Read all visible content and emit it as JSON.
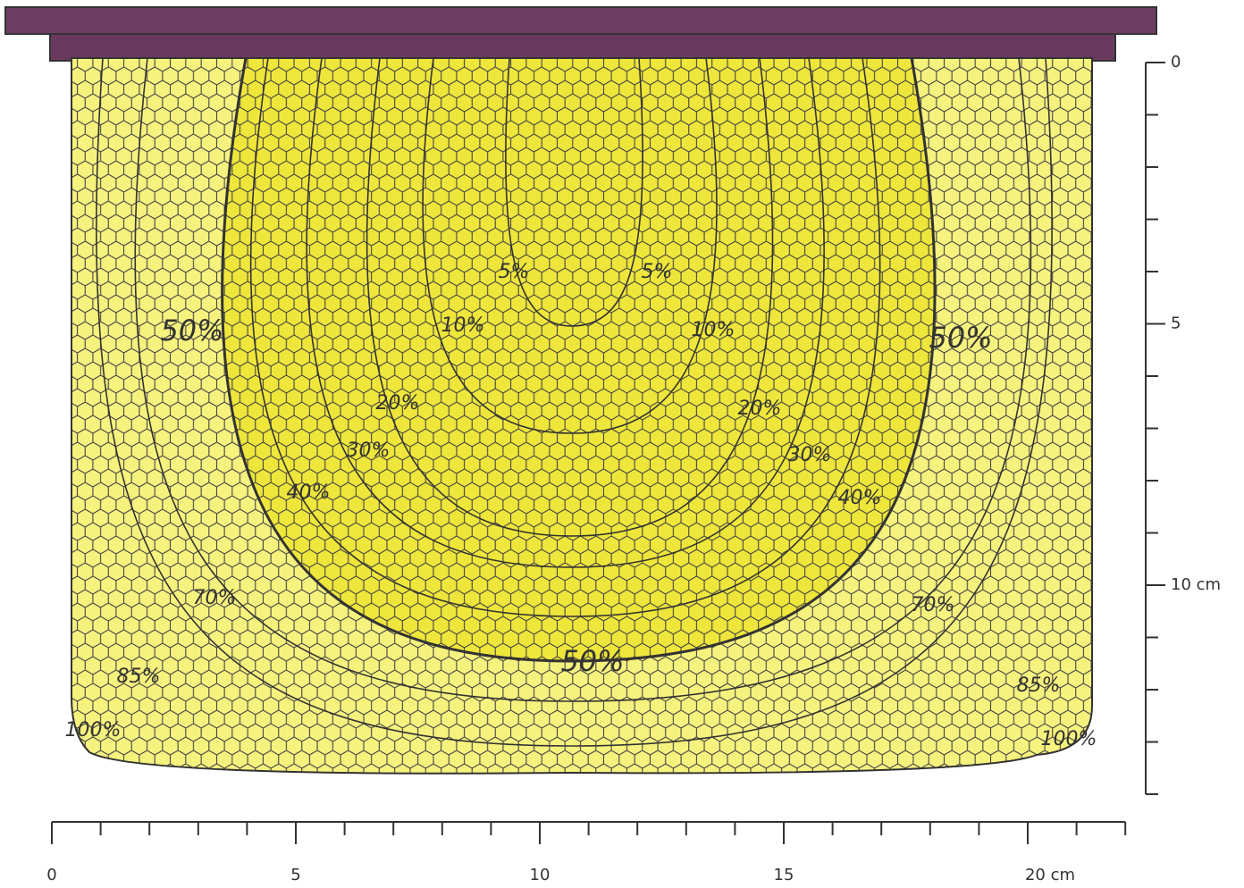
{
  "contours": [
    {
      "label": "5%"
    },
    {
      "label": "5%"
    },
    {
      "label": "10%"
    },
    {
      "label": "10%"
    },
    {
      "label": "20%"
    },
    {
      "label": "20%"
    },
    {
      "label": "30%"
    },
    {
      "label": "30%"
    },
    {
      "label": "40%"
    },
    {
      "label": "40%"
    },
    {
      "label": "50%"
    },
    {
      "label": "50%"
    },
    {
      "label": "50%"
    },
    {
      "label": "70%"
    },
    {
      "label": "70%"
    },
    {
      "label": "85%"
    },
    {
      "label": "85%"
    },
    {
      "label": "100%"
    },
    {
      "label": "100%"
    }
  ],
  "x_axis": {
    "labels": [
      "0",
      "5",
      "10",
      "15",
      "20 cm"
    ]
  },
  "y_axis": {
    "labels": [
      "0",
      "5",
      "10 cm"
    ]
  }
}
